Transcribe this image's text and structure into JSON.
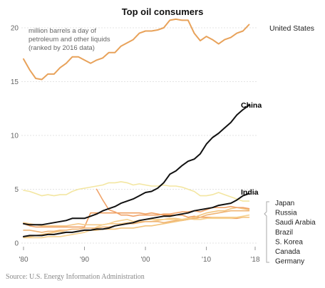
{
  "chart_data": {
    "type": "line",
    "title": "Top oil consumers",
    "ylabel": "million barrels a day of petroleum and other liquids (ranked by 2016 data)",
    "ylabel_lines": [
      "million barrels a day of",
      "petroleum and other liquids",
      "(ranked by 2016 data)"
    ],
    "xlabel": "",
    "xlim": [
      1980,
      2018
    ],
    "ylim": [
      0,
      21
    ],
    "yticks": [
      0,
      5,
      10,
      15,
      20
    ],
    "ytick_labels": [
      "0",
      "5",
      "10",
      "15",
      "20"
    ],
    "xticks": [
      1980,
      1990,
      2000,
      2010,
      2018
    ],
    "xtick_labels": [
      "'80",
      "'90",
      "'00",
      "'10",
      "'18"
    ],
    "grid": true,
    "source": "Source: U.S. Energy Information Administration",
    "group_legend": [
      "Japan",
      "Russia",
      "Saudi Arabia",
      "Brazil",
      "S. Korea",
      "Canada",
      "Germany"
    ],
    "series": [
      {
        "name": "United States",
        "color": "#e8a25a",
        "x": [
          1980,
          1981,
          1982,
          1983,
          1984,
          1985,
          1986,
          1987,
          1988,
          1989,
          1990,
          1991,
          1992,
          1993,
          1994,
          1995,
          1996,
          1997,
          1998,
          1999,
          2000,
          2001,
          2002,
          2003,
          2004,
          2005,
          2006,
          2007,
          2008,
          2009,
          2010,
          2011,
          2012,
          2013,
          2014,
          2015,
          2016,
          2017
        ],
        "values": [
          17.1,
          16.1,
          15.3,
          15.2,
          15.7,
          15.7,
          16.3,
          16.7,
          17.3,
          17.3,
          17.0,
          16.7,
          17.0,
          17.2,
          17.7,
          17.7,
          18.3,
          18.6,
          18.9,
          19.5,
          19.7,
          19.7,
          19.8,
          20.0,
          20.7,
          20.8,
          20.7,
          20.7,
          19.5,
          18.8,
          19.2,
          18.9,
          18.5,
          18.9,
          19.1,
          19.5,
          19.7,
          20.3
        ]
      },
      {
        "name": "China",
        "color": "#111111",
        "x": [
          1980,
          1981,
          1982,
          1983,
          1984,
          1985,
          1986,
          1987,
          1988,
          1989,
          1990,
          1991,
          1992,
          1993,
          1994,
          1995,
          1996,
          1997,
          1998,
          1999,
          2000,
          2001,
          2002,
          2003,
          2004,
          2005,
          2006,
          2007,
          2008,
          2009,
          2010,
          2011,
          2012,
          2013,
          2014,
          2015,
          2016,
          2017
        ],
        "values": [
          1.8,
          1.7,
          1.7,
          1.7,
          1.8,
          1.9,
          2.0,
          2.1,
          2.3,
          2.3,
          2.3,
          2.5,
          2.7,
          3.0,
          3.2,
          3.4,
          3.7,
          3.9,
          4.1,
          4.4,
          4.7,
          4.8,
          5.1,
          5.6,
          6.4,
          6.7,
          7.2,
          7.6,
          7.8,
          8.3,
          9.2,
          9.8,
          10.2,
          10.7,
          11.2,
          11.9,
          12.4,
          12.8
        ]
      },
      {
        "name": "India",
        "color": "#111111",
        "x": [
          1980,
          1981,
          1982,
          1983,
          1984,
          1985,
          1986,
          1987,
          1988,
          1989,
          1990,
          1991,
          1992,
          1993,
          1994,
          1995,
          1996,
          1997,
          1998,
          1999,
          2000,
          2001,
          2002,
          2003,
          2004,
          2005,
          2006,
          2007,
          2008,
          2009,
          2010,
          2011,
          2012,
          2013,
          2014,
          2015,
          2016,
          2017
        ],
        "values": [
          0.6,
          0.7,
          0.7,
          0.7,
          0.8,
          0.8,
          0.9,
          1.0,
          1.0,
          1.1,
          1.2,
          1.2,
          1.3,
          1.3,
          1.4,
          1.6,
          1.7,
          1.8,
          1.9,
          2.1,
          2.2,
          2.3,
          2.4,
          2.5,
          2.5,
          2.6,
          2.7,
          2.8,
          3.0,
          3.1,
          3.2,
          3.3,
          3.5,
          3.6,
          3.7,
          4.0,
          4.4,
          4.6
        ]
      },
      {
        "name": "Japan",
        "color": "#f3e6a1",
        "x": [
          1980,
          1981,
          1982,
          1983,
          1984,
          1985,
          1986,
          1987,
          1988,
          1989,
          1990,
          1991,
          1992,
          1993,
          1994,
          1995,
          1996,
          1997,
          1998,
          1999,
          2000,
          2001,
          2002,
          2003,
          2004,
          2005,
          2006,
          2007,
          2008,
          2009,
          2010,
          2011,
          2012,
          2013,
          2014,
          2015,
          2016,
          2017
        ],
        "values": [
          4.9,
          4.8,
          4.6,
          4.4,
          4.5,
          4.4,
          4.5,
          4.5,
          4.8,
          5.0,
          5.1,
          5.2,
          5.3,
          5.4,
          5.6,
          5.6,
          5.7,
          5.6,
          5.4,
          5.5,
          5.4,
          5.3,
          5.3,
          5.4,
          5.3,
          5.3,
          5.2,
          5.0,
          4.8,
          4.4,
          4.4,
          4.5,
          4.7,
          4.5,
          4.3,
          4.1,
          3.9,
          3.9
        ]
      },
      {
        "name": "Russia",
        "color": "#f0a36a",
        "x": [
          1992,
          1993,
          1994,
          1995,
          1996,
          1997,
          1998,
          1999,
          2000,
          2001,
          2002,
          2003,
          2004,
          2005,
          2006,
          2007,
          2008,
          2009,
          2010,
          2011,
          2012,
          2013,
          2014,
          2015,
          2016,
          2017
        ],
        "values": [
          5.0,
          4.0,
          3.1,
          2.9,
          2.6,
          2.6,
          2.5,
          2.6,
          2.6,
          2.6,
          2.6,
          2.7,
          2.7,
          2.8,
          2.9,
          2.9,
          3.0,
          2.9,
          3.1,
          3.3,
          3.3,
          3.3,
          3.4,
          3.3,
          3.3,
          3.2
        ]
      },
      {
        "name": "Saudi Arabia",
        "color": "#f3c47d",
        "x": [
          1980,
          1981,
          1982,
          1983,
          1984,
          1985,
          1986,
          1987,
          1988,
          1989,
          1990,
          1991,
          1992,
          1993,
          1994,
          1995,
          1996,
          1997,
          1998,
          1999,
          2000,
          2001,
          2002,
          2003,
          2004,
          2005,
          2006,
          2007,
          2008,
          2009,
          2010,
          2011,
          2012,
          2013,
          2014,
          2015,
          2016,
          2017
        ],
        "values": [
          0.6,
          0.6,
          0.7,
          0.8,
          0.9,
          1.0,
          1.1,
          1.0,
          1.0,
          1.1,
          1.2,
          1.2,
          1.2,
          1.3,
          1.3,
          1.3,
          1.4,
          1.4,
          1.4,
          1.5,
          1.6,
          1.6,
          1.7,
          1.8,
          1.9,
          2.0,
          2.1,
          2.2,
          2.4,
          2.6,
          2.8,
          2.9,
          3.0,
          3.0,
          3.2,
          3.3,
          3.2,
          3.1
        ]
      },
      {
        "name": "Brazil",
        "color": "#efb474",
        "x": [
          1980,
          1981,
          1982,
          1983,
          1984,
          1985,
          1986,
          1987,
          1988,
          1989,
          1990,
          1991,
          1992,
          1993,
          1994,
          1995,
          1996,
          1997,
          1998,
          1999,
          2000,
          2001,
          2002,
          2003,
          2004,
          2005,
          2006,
          2007,
          2008,
          2009,
          2010,
          2011,
          2012,
          2013,
          2014,
          2015,
          2016,
          2017
        ],
        "values": [
          1.2,
          1.2,
          1.1,
          1.0,
          1.1,
          1.1,
          1.2,
          1.2,
          1.3,
          1.3,
          1.4,
          1.4,
          1.4,
          1.5,
          1.5,
          1.6,
          1.7,
          1.8,
          1.8,
          1.9,
          2.0,
          2.0,
          2.0,
          1.9,
          2.0,
          2.1,
          2.1,
          2.2,
          2.3,
          2.4,
          2.6,
          2.7,
          2.8,
          2.9,
          3.0,
          3.0,
          3.0,
          3.0
        ]
      },
      {
        "name": "S. Korea",
        "color": "#f6d18f",
        "x": [
          1980,
          1981,
          1982,
          1983,
          1984,
          1985,
          1986,
          1987,
          1988,
          1989,
          1990,
          1991,
          1992,
          1993,
          1994,
          1995,
          1996,
          1997,
          1998,
          1999,
          2000,
          2001,
          2002,
          2003,
          2004,
          2005,
          2006,
          2007,
          2008,
          2009,
          2010,
          2011,
          2012,
          2013,
          2014,
          2015,
          2016,
          2017
        ],
        "values": [
          0.5,
          0.5,
          0.5,
          0.5,
          0.6,
          0.6,
          0.6,
          0.7,
          0.8,
          0.9,
          1.0,
          1.2,
          1.5,
          1.7,
          1.8,
          2.0,
          2.1,
          2.2,
          2.0,
          2.1,
          2.2,
          2.2,
          2.2,
          2.2,
          2.2,
          2.2,
          2.2,
          2.3,
          2.2,
          2.2,
          2.3,
          2.3,
          2.3,
          2.3,
          2.3,
          2.4,
          2.5,
          2.6
        ]
      },
      {
        "name": "Canada",
        "color": "#f5c98a",
        "x": [
          1980,
          1981,
          1982,
          1983,
          1984,
          1985,
          1986,
          1987,
          1988,
          1989,
          1990,
          1991,
          1992,
          1993,
          1994,
          1995,
          1996,
          1997,
          1998,
          1999,
          2000,
          2001,
          2002,
          2003,
          2004,
          2005,
          2006,
          2007,
          2008,
          2009,
          2010,
          2011,
          2012,
          2013,
          2014,
          2015,
          2016,
          2017
        ],
        "values": [
          1.9,
          1.8,
          1.7,
          1.6,
          1.6,
          1.6,
          1.6,
          1.6,
          1.7,
          1.8,
          1.7,
          1.7,
          1.7,
          1.7,
          1.8,
          1.8,
          1.8,
          1.9,
          1.9,
          2.0,
          2.0,
          2.0,
          2.1,
          2.2,
          2.3,
          2.3,
          2.2,
          2.3,
          2.3,
          2.2,
          2.3,
          2.4,
          2.4,
          2.4,
          2.4,
          2.4,
          2.4,
          2.4
        ]
      },
      {
        "name": "Germany",
        "color": "#f0a060",
        "x": [
          1980,
          1981,
          1982,
          1983,
          1984,
          1985,
          1986,
          1987,
          1988,
          1989,
          1990,
          1991,
          1992,
          1993,
          1994,
          1995,
          1996,
          1997,
          1998,
          1999,
          2000,
          2001,
          2002,
          2003,
          2004,
          2005,
          2006,
          2007,
          2008,
          2009,
          2010,
          2011,
          2012,
          2013,
          2014,
          2015,
          2016,
          2017
        ],
        "values": [
          1.8,
          1.6,
          1.5,
          1.5,
          1.5,
          1.5,
          1.5,
          1.5,
          1.5,
          1.5,
          1.5,
          2.8,
          2.8,
          2.8,
          2.8,
          2.8,
          2.8,
          2.8,
          2.8,
          2.8,
          2.7,
          2.8,
          2.7,
          2.6,
          2.6,
          2.6,
          2.6,
          2.4,
          2.5,
          2.4,
          2.4,
          2.4,
          2.4,
          2.4,
          2.3,
          2.3,
          2.4,
          2.4
        ]
      }
    ]
  }
}
